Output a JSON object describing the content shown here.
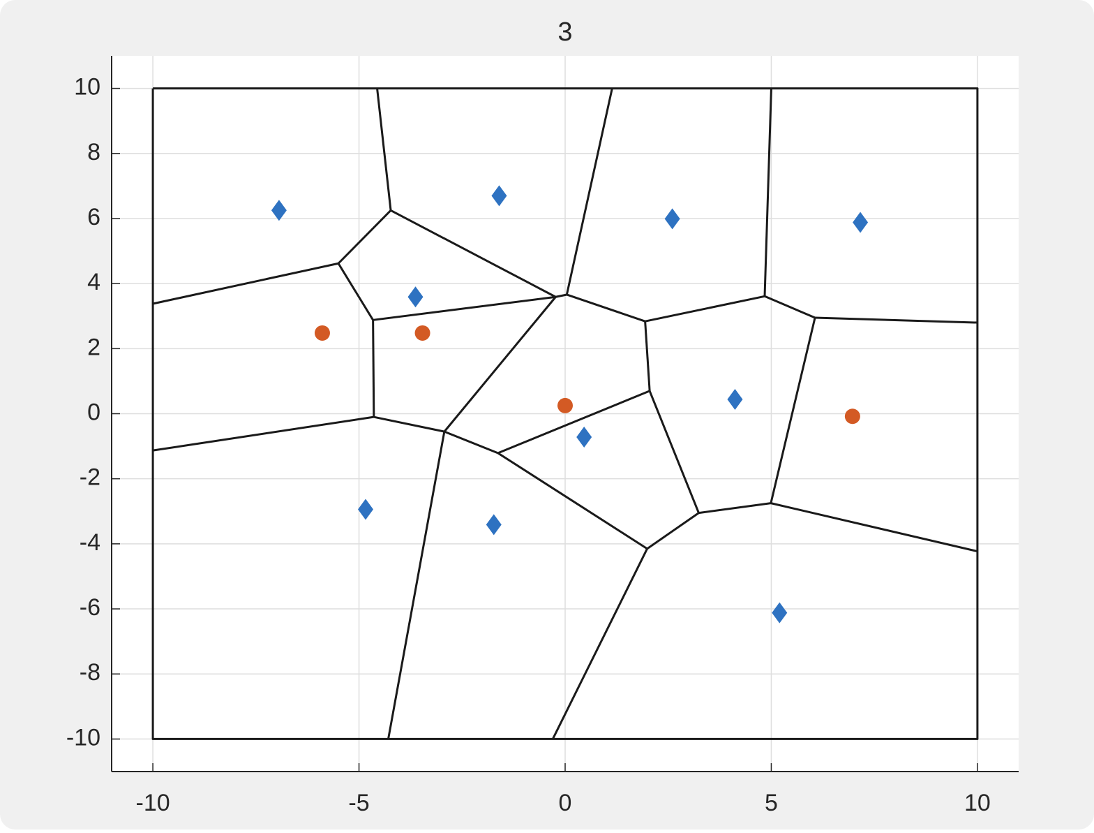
{
  "chart_data": {
    "type": "scatter",
    "title": "3",
    "xlim": [
      -11,
      11
    ],
    "ylim": [
      -11,
      11
    ],
    "xticks": [
      -10,
      -5,
      0,
      5,
      10
    ],
    "yticks": [
      -10,
      -8,
      -6,
      -4,
      -2,
      0,
      2,
      4,
      6,
      8,
      10
    ],
    "grid": true,
    "series": [
      {
        "type": "line",
        "color": "#1a1a1a",
        "x": [
          -10,
          10,
          10,
          -10,
          -10,
          null,
          -4.56,
          -4.23,
          null,
          -4.23,
          -5.5,
          null,
          -5.5,
          -10,
          null,
          -5.5,
          -4.66,
          null,
          -4.23,
          -0.23,
          null,
          -4.66,
          -0.23,
          null,
          -0.23,
          0.04,
          null,
          1.14,
          0.04,
          null,
          0.04,
          1.94,
          null,
          1.94,
          4.84,
          null,
          4.84,
          5.0,
          null,
          4.84,
          6.06,
          null,
          6.06,
          10,
          null,
          1.94,
          2.05,
          null,
          2.05,
          -1.63,
          null,
          -4.66,
          -4.64,
          null,
          -4.64,
          -10,
          null,
          -4.64,
          -2.93,
          null,
          -2.93,
          -0.23,
          null,
          -2.93,
          -1.63,
          null,
          -2.93,
          -4.29,
          null,
          -1.63,
          1.99,
          null,
          2.05,
          3.24,
          null,
          3.24,
          1.99,
          null,
          3.24,
          4.99,
          null,
          4.99,
          6.06,
          null,
          4.99,
          10,
          null,
          1.99,
          -0.3
        ],
        "y": [
          10,
          10,
          -10,
          -10,
          10,
          null,
          10,
          6.25,
          null,
          6.25,
          4.62,
          null,
          4.62,
          3.38,
          null,
          4.62,
          2.88,
          null,
          6.25,
          3.59,
          null,
          2.88,
          3.59,
          null,
          3.59,
          3.66,
          null,
          10,
          3.66,
          null,
          3.66,
          2.84,
          null,
          2.84,
          3.61,
          null,
          3.61,
          10,
          null,
          3.61,
          2.95,
          null,
          2.95,
          2.8,
          null,
          2.84,
          0.7,
          null,
          0.7,
          -1.21,
          null,
          2.88,
          -0.1,
          null,
          -0.1,
          -1.13,
          null,
          -0.1,
          -0.55,
          null,
          -0.55,
          3.59,
          null,
          -0.55,
          -1.21,
          null,
          -0.55,
          -10,
          null,
          -1.21,
          -4.15,
          null,
          0.7,
          -3.05,
          null,
          -3.05,
          -4.15,
          null,
          -3.05,
          -2.75,
          null,
          -2.75,
          2.95,
          null,
          -2.75,
          -4.23,
          null,
          -4.15,
          -10
        ]
      },
      {
        "type": "scatter",
        "marker": "diamond",
        "color": "#2e72c1",
        "x": [
          -6.94,
          -1.6,
          2.6,
          7.16,
          -3.63,
          4.12,
          0.46,
          -4.84,
          -1.73,
          5.2
        ],
        "y": [
          6.25,
          6.7,
          5.99,
          5.88,
          3.59,
          0.44,
          -0.72,
          -2.94,
          -3.41,
          -6.12
        ]
      },
      {
        "type": "scatter",
        "marker": "circle",
        "color": "#d35a24",
        "x": [
          -5.89,
          -3.46,
          0,
          6.97
        ],
        "y": [
          2.48,
          2.48,
          0.25,
          -0.08
        ]
      }
    ]
  }
}
